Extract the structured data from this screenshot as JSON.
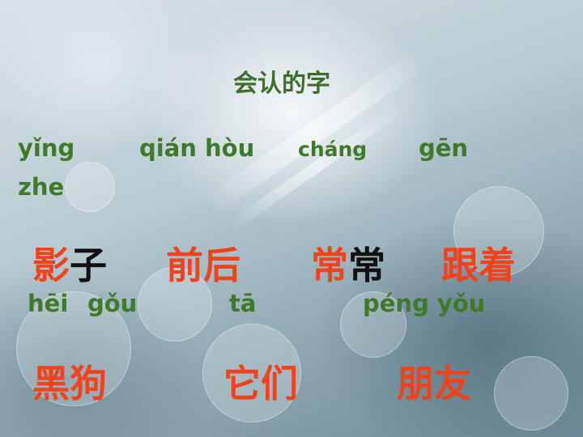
{
  "title": "会认的字",
  "pinyin_row1": [
    "yǐng",
    "qián hòu",
    "cháng",
    "gēn"
  ],
  "pinyin_row1b": "zhe",
  "words_row1": [
    {
      "part1": "影",
      "part2": "子"
    },
    {
      "part1": "前后",
      "part2": ""
    },
    {
      "part1": "常",
      "part2": "常"
    },
    {
      "part1": "跟着",
      "part2": ""
    }
  ],
  "pinyin_row2": [
    "hēi",
    "gǒu",
    "tā",
    "péng yǒu"
  ],
  "words_row2": [
    "黑狗",
    "它们",
    "朋友"
  ],
  "colors": {
    "pinyin": "#3e7a2a",
    "hanzi_red": "#f0431c",
    "hanzi_black": "#111111",
    "title": "#3f6e2c"
  }
}
